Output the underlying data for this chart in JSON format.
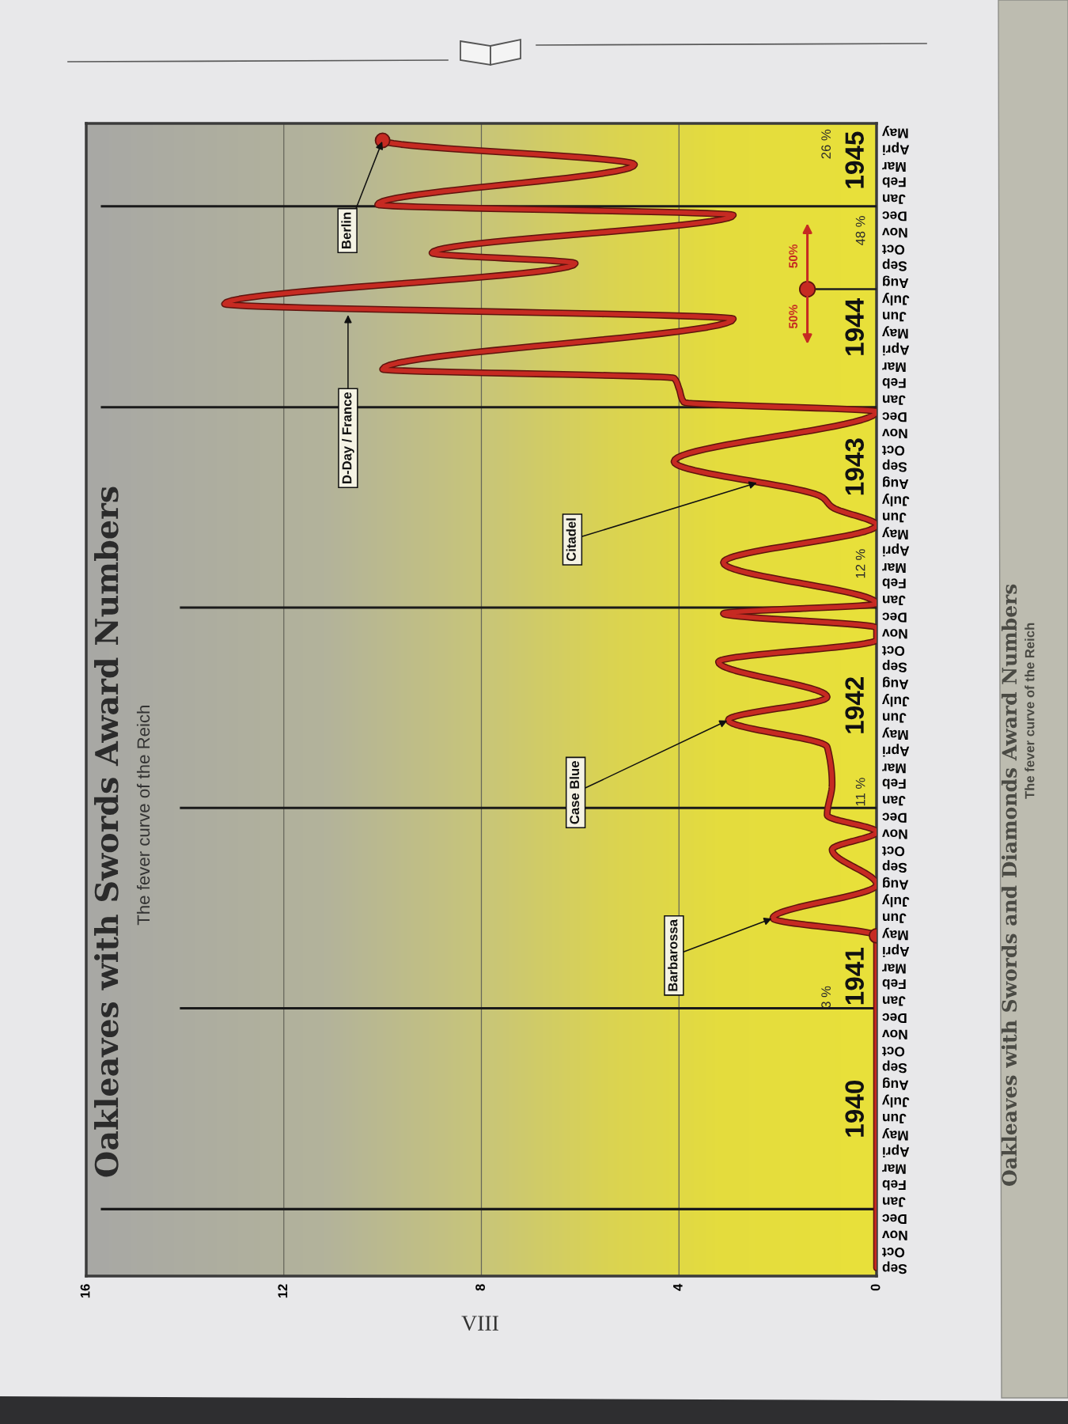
{
  "chart_data": {
    "type": "line",
    "orientation": "horizontal",
    "title": "Oakleaves with Swords Award Numbers",
    "subtitle": "The fever curve of the Reich",
    "xlim": [
      16,
      0
    ],
    "xticks": [
      0,
      4,
      8,
      12,
      16
    ],
    "grid": "x",
    "ylim": [
      "1939-09-01",
      "1945-06-01"
    ],
    "yticks": [
      {
        "value": "1939-09-16",
        "label": "Sep"
      },
      {
        "value": "1939-10-16",
        "label": "Oct"
      },
      {
        "value": "1939-11-16",
        "label": "Nov"
      },
      {
        "value": "1939-12-16",
        "label": "Dec"
      },
      {
        "value": "1940-01-16",
        "label": "Jan"
      },
      {
        "value": "1940-02-16",
        "label": "Feb"
      },
      {
        "value": "1940-03-16",
        "label": "Mar"
      },
      {
        "value": "1940-04-16",
        "label": "Apri"
      },
      {
        "value": "1940-05-16",
        "label": "May"
      },
      {
        "value": "1940-06-16",
        "label": "Jun"
      },
      {
        "value": "1940-07-16",
        "label": "July"
      },
      {
        "value": "1940-08-16",
        "label": "Aug"
      },
      {
        "value": "1940-09-16",
        "label": "Sep"
      },
      {
        "value": "1940-10-16",
        "label": "Oct"
      },
      {
        "value": "1940-11-16",
        "label": "Nov"
      },
      {
        "value": "1940-12-16",
        "label": "Dec"
      },
      {
        "value": "1941-01-16",
        "label": "Jan"
      },
      {
        "value": "1941-02-16",
        "label": "Feb"
      },
      {
        "value": "1941-03-16",
        "label": "Mar"
      },
      {
        "value": "1941-04-16",
        "label": "Apri"
      },
      {
        "value": "1941-05-16",
        "label": "May"
      },
      {
        "value": "1941-06-16",
        "label": "Jun"
      },
      {
        "value": "1941-07-16",
        "label": "July"
      },
      {
        "value": "1941-08-16",
        "label": "Aug"
      },
      {
        "value": "1941-09-16",
        "label": "Sep"
      },
      {
        "value": "1941-10-16",
        "label": "Oct"
      },
      {
        "value": "1941-11-16",
        "label": "Nov"
      },
      {
        "value": "1941-12-16",
        "label": "Dec"
      },
      {
        "value": "1942-01-16",
        "label": "Jan"
      },
      {
        "value": "1942-02-16",
        "label": "Feb"
      },
      {
        "value": "1942-03-16",
        "label": "Mar"
      },
      {
        "value": "1942-04-16",
        "label": "Apri"
      },
      {
        "value": "1942-05-16",
        "label": "May"
      },
      {
        "value": "1942-06-16",
        "label": "Jun"
      },
      {
        "value": "1942-07-16",
        "label": "July"
      },
      {
        "value": "1942-08-16",
        "label": "Aug"
      },
      {
        "value": "1942-09-16",
        "label": "Sep"
      },
      {
        "value": "1942-10-16",
        "label": "Oct"
      },
      {
        "value": "1942-11-16",
        "label": "Nov"
      },
      {
        "value": "1942-12-16",
        "label": "Dec"
      },
      {
        "value": "1943-01-16",
        "label": "Jan"
      },
      {
        "value": "1943-02-16",
        "label": "Feb"
      },
      {
        "value": "1943-03-16",
        "label": "Mar"
      },
      {
        "value": "1943-04-16",
        "label": "Apri"
      },
      {
        "value": "1943-05-16",
        "label": "May"
      },
      {
        "value": "1943-06-16",
        "label": "Jun"
      },
      {
        "value": "1943-07-16",
        "label": "July"
      },
      {
        "value": "1943-08-16",
        "label": "Aug"
      },
      {
        "value": "1943-09-16",
        "label": "Sep"
      },
      {
        "value": "1943-10-16",
        "label": "Oct"
      },
      {
        "value": "1943-11-16",
        "label": "Nov"
      },
      {
        "value": "1943-12-16",
        "label": "Dec"
      },
      {
        "value": "1944-01-16",
        "label": "Jan"
      },
      {
        "value": "1944-02-16",
        "label": "Feb"
      },
      {
        "value": "1944-03-16",
        "label": "Mar"
      },
      {
        "value": "1944-04-16",
        "label": "Apri"
      },
      {
        "value": "1944-05-16",
        "label": "May"
      },
      {
        "value": "1944-06-16",
        "label": "Jun"
      },
      {
        "value": "1944-07-16",
        "label": "July"
      },
      {
        "value": "1944-08-16",
        "label": "Aug"
      },
      {
        "value": "1944-09-16",
        "label": "Sep"
      },
      {
        "value": "1944-10-16",
        "label": "Oct"
      },
      {
        "value": "1944-11-16",
        "label": "Nov"
      },
      {
        "value": "1944-12-16",
        "label": "Dec"
      },
      {
        "value": "1945-01-16",
        "label": "Jan"
      },
      {
        "value": "1945-02-16",
        "label": "Feb"
      },
      {
        "value": "1945-03-16",
        "label": "Mar"
      },
      {
        "value": "1945-04-16",
        "label": "Apri"
      },
      {
        "value": "1945-05-16",
        "label": "May"
      }
    ],
    "series": [
      {
        "color": "#c62a22",
        "x": [
          "1939-09-16",
          "1941-05-13",
          "1941-06-14",
          "1941-08-14",
          "1941-10-17",
          "1941-11-18",
          "1941-12-19",
          "1942-02-13",
          "1942-04-22",
          "1942-06-10",
          "1942-07-22",
          "1942-09-24",
          "1942-11-03",
          "1942-11-25",
          "1942-12-21",
          "1943-01-08",
          "1943-03-24",
          "1943-05-31",
          "1943-07-03",
          "1943-07-21",
          "1943-09-24",
          "1943-12-24",
          "1944-01-10",
          "1944-02-04",
          "1944-02-23",
          "1944-03-10",
          "1944-06-10",
          "1944-07-07",
          "1944-09-19",
          "1944-10-08",
          "1944-12-16",
          "1945-01-04",
          "1945-03-18",
          "1945-05-01"
        ],
        "values": [
          0,
          0,
          2.1,
          0,
          0.9,
          0,
          1.0,
          0.9,
          1.0,
          3.0,
          1.0,
          3.2,
          0,
          0,
          3.1,
          0,
          3.1,
          0,
          0.9,
          1.1,
          4.1,
          0,
          3.9,
          4.0,
          4.1,
          10.0,
          2.9,
          13.2,
          6.1,
          9.0,
          2.9,
          10.1,
          4.9,
          10.0
        ]
      },
      {
        "type": "scatter",
        "color": "#c62a22",
        "marker": "circle",
        "x": [
          "1941-05-13",
          "1945-05-01"
        ],
        "values": [
          0,
          10.0
        ]
      },
      {
        "type": "lollipop",
        "color": "#c62a22",
        "x": [
          "1944-08-03"
        ],
        "values": [
          1.4
        ]
      }
    ],
    "ref_lines": [
      {
        "axis": "y",
        "value": "1940-01-01",
        "color": "#1a1a1a"
      },
      {
        "axis": "y",
        "value": "1941-01-01",
        "color": "#1a1a1a"
      },
      {
        "axis": "y",
        "value": "1942-01-01",
        "color": "#1a1a1a"
      },
      {
        "axis": "y",
        "value": "1943-01-01",
        "color": "#1a1a1a"
      },
      {
        "axis": "y",
        "value": "1944-01-01",
        "color": "#1a1a1a"
      },
      {
        "axis": "y",
        "value": "1945-01-01",
        "color": "#1a1a1a"
      }
    ],
    "annotations": [
      "1940",
      "1941",
      "1942",
      "1943",
      "1944",
      "1945",
      "3 %",
      "11 %",
      "12 %",
      "48 %",
      "26 %",
      {
        "text": "Barbarossa",
        "x": 2.1,
        "y": "1941-06-14"
      },
      {
        "text": "Case Blue",
        "x": 3.0,
        "y": "1942-06-10"
      },
      {
        "text": "Citadel",
        "x": 2.4,
        "y": "1943-08-17"
      },
      {
        "text": "D-Day / France",
        "x": 10.7,
        "y": "1944-06-19"
      },
      {
        "text": "Berlin",
        "x": 10.0,
        "y": "1945-05-01"
      },
      "50%",
      "50%",
      "VIII",
      "Oakleaves with Swords and Diamonds Award Numbers",
      "The fever curve of the Reich"
    ]
  }
}
